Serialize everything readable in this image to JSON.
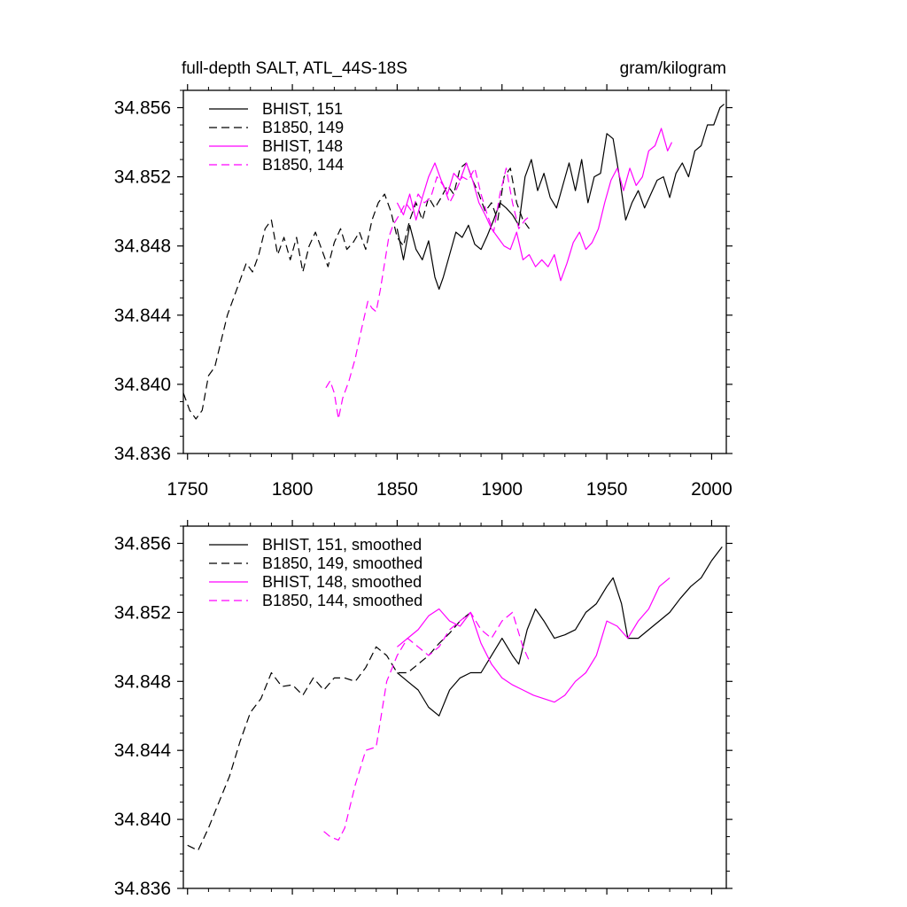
{
  "chart_data": [
    {
      "type": "line",
      "title_left": "full-depth SALT, ATL_44S-18S",
      "title_right": "gram/kilogram",
      "xlim": [
        1748,
        2007
      ],
      "ylim": [
        34.836,
        34.857
      ],
      "xticks": [
        1750,
        1800,
        1850,
        1900,
        1950,
        2000
      ],
      "xtick_labels": [
        "1750",
        "1800",
        "1850",
        "1900",
        "1950",
        "2000"
      ],
      "yticks": [
        34.836,
        34.84,
        34.844,
        34.848,
        34.852,
        34.856
      ],
      "ytick_labels": [
        "34.836",
        "34.840",
        "34.844",
        "34.848",
        "34.852",
        "34.856"
      ],
      "legend_position": "top-left",
      "series": [
        {
          "name": "BHIST, 151",
          "color": "#000000",
          "dash": "solid",
          "x": [
            1850,
            1853,
            1856,
            1859,
            1862,
            1865,
            1868,
            1870,
            1872,
            1875,
            1878,
            1881,
            1884,
            1887,
            1890,
            1893,
            1896,
            1899,
            1902,
            1905,
            1908,
            1911,
            1914,
            1917,
            1920,
            1923,
            1926,
            1929,
            1932,
            1935,
            1938,
            1941,
            1944,
            1947,
            1950,
            1953,
            1956,
            1959,
            1962,
            1965,
            1968,
            1971,
            1974,
            1977,
            1980,
            1983,
            1986,
            1989,
            1992,
            1995,
            1998,
            2001,
            2004,
            2006
          ],
          "y": [
            34.849,
            34.8472,
            34.8492,
            34.8478,
            34.8472,
            34.8483,
            34.8462,
            34.8455,
            34.8462,
            34.8475,
            34.8488,
            34.8485,
            34.8492,
            34.8481,
            34.8478,
            34.8486,
            34.8495,
            34.8505,
            34.8502,
            34.8498,
            34.8492,
            34.852,
            34.853,
            34.8512,
            34.8522,
            34.8508,
            34.8502,
            34.8515,
            34.8528,
            34.8512,
            34.853,
            34.8505,
            34.852,
            34.8522,
            34.8545,
            34.8542,
            34.852,
            34.8495,
            34.8505,
            34.8512,
            34.8502,
            34.851,
            34.8518,
            34.852,
            34.8508,
            34.8522,
            34.8528,
            34.852,
            34.8535,
            34.8538,
            34.855,
            34.855,
            34.856,
            34.8562
          ]
        },
        {
          "name": "B1850, 149",
          "color": "#000000",
          "dash": "dashed",
          "x": [
            1748,
            1751,
            1754,
            1757,
            1760,
            1763,
            1766,
            1769,
            1772,
            1775,
            1778,
            1781,
            1784,
            1787,
            1790,
            1793,
            1796,
            1799,
            1802,
            1805,
            1808,
            1811,
            1814,
            1817,
            1820,
            1823,
            1826,
            1829,
            1832,
            1835,
            1838,
            1841,
            1844,
            1847,
            1850,
            1853,
            1856,
            1859,
            1862,
            1865,
            1868,
            1871,
            1874,
            1877,
            1880,
            1883,
            1886,
            1889,
            1892,
            1895,
            1898,
            1901,
            1904,
            1907,
            1910,
            1913
          ],
          "y": [
            34.8395,
            34.8385,
            34.838,
            34.8385,
            34.8405,
            34.841,
            34.8425,
            34.844,
            34.845,
            34.846,
            34.847,
            34.8465,
            34.8475,
            34.849,
            34.8495,
            34.8475,
            34.8485,
            34.8472,
            34.8485,
            34.8465,
            34.848,
            34.8488,
            34.8478,
            34.8468,
            34.8482,
            34.849,
            34.8478,
            34.8482,
            34.8488,
            34.8478,
            34.8495,
            34.8505,
            34.851,
            34.85,
            34.8485,
            34.848,
            34.8495,
            34.8505,
            34.8495,
            34.8508,
            34.8502,
            34.8508,
            34.8515,
            34.851,
            34.8525,
            34.8528,
            34.8518,
            34.851,
            34.85,
            34.8505,
            34.8495,
            34.852,
            34.8525,
            34.8505,
            34.8495,
            34.849
          ]
        },
        {
          "name": "BHIST, 148",
          "color": "#ff00ff",
          "dash": "solid",
          "x": [
            1850,
            1853,
            1856,
            1859,
            1862,
            1865,
            1868,
            1871,
            1874,
            1877,
            1880,
            1883,
            1886,
            1889,
            1892,
            1895,
            1898,
            1901,
            1904,
            1907,
            1910,
            1913,
            1916,
            1919,
            1922,
            1925,
            1928,
            1931,
            1934,
            1937,
            1940,
            1943,
            1946,
            1949,
            1952,
            1955,
            1958,
            1961,
            1964,
            1967,
            1970,
            1973,
            1976,
            1979,
            1981
          ],
          "y": [
            34.8505,
            34.8498,
            34.851,
            34.8495,
            34.8508,
            34.852,
            34.8528,
            34.8518,
            34.851,
            34.8522,
            34.8518,
            34.8528,
            34.8518,
            34.8505,
            34.8498,
            34.849,
            34.8485,
            34.848,
            34.8478,
            34.8488,
            34.8472,
            34.8475,
            34.8468,
            34.8472,
            34.8468,
            34.8475,
            34.846,
            34.847,
            34.8482,
            34.8488,
            34.8478,
            34.8482,
            34.849,
            34.8505,
            34.8518,
            34.8525,
            34.8512,
            34.8525,
            34.8515,
            34.852,
            34.8535,
            34.8538,
            34.8548,
            34.8535,
            34.854
          ]
        },
        {
          "name": "B1850, 144",
          "color": "#ff00ff",
          "dash": "dashed",
          "x": [
            1816,
            1818,
            1820,
            1822,
            1824,
            1827,
            1830,
            1833,
            1836,
            1838,
            1840,
            1842,
            1844,
            1846,
            1848,
            1851,
            1854,
            1857,
            1860,
            1863,
            1866,
            1869,
            1872,
            1875,
            1878,
            1881,
            1884,
            1887,
            1890,
            1893,
            1896,
            1899,
            1902,
            1905,
            1908,
            1911,
            1914
          ],
          "y": [
            34.8398,
            34.8402,
            34.8395,
            34.838,
            34.8392,
            34.8402,
            34.8415,
            34.8432,
            34.8448,
            34.8444,
            34.8442,
            34.8455,
            34.847,
            34.8485,
            34.8492,
            34.8498,
            34.8505,
            34.85,
            34.851,
            34.8505,
            34.8508,
            34.852,
            34.8515,
            34.8505,
            34.8512,
            34.852,
            34.8518,
            34.8525,
            34.851,
            34.8498,
            34.8488,
            34.851,
            34.8525,
            34.8505,
            34.849,
            34.8495,
            34.8498
          ]
        }
      ]
    },
    {
      "type": "line",
      "xlim": [
        1748,
        2007
      ],
      "ylim": [
        34.836,
        34.857
      ],
      "xticks": [
        1750,
        1800,
        1850,
        1900,
        1950,
        2000
      ],
      "yticks": [
        34.836,
        34.84,
        34.844,
        34.848,
        34.852,
        34.856
      ],
      "ytick_labels": [
        "34.836",
        "34.840",
        "34.844",
        "34.848",
        "34.852",
        "34.856"
      ],
      "legend_position": "top-left",
      "series": [
        {
          "name": "BHIST, 151, smoothed",
          "color": "#000000",
          "dash": "solid",
          "x": [
            1850,
            1855,
            1860,
            1865,
            1870,
            1875,
            1880,
            1885,
            1890,
            1895,
            1900,
            1905,
            1908,
            1912,
            1916,
            1920,
            1925,
            1930,
            1935,
            1940,
            1945,
            1950,
            1953,
            1957,
            1960,
            1965,
            1970,
            1975,
            1980,
            1985,
            1990,
            1995,
            2000,
            2005
          ],
          "y": [
            34.8485,
            34.848,
            34.8475,
            34.8465,
            34.846,
            34.8475,
            34.8482,
            34.8485,
            34.8485,
            34.8495,
            34.8505,
            34.8495,
            34.849,
            34.851,
            34.8522,
            34.8515,
            34.8505,
            34.8507,
            34.851,
            34.852,
            34.8525,
            34.8535,
            34.854,
            34.8525,
            34.8505,
            34.8505,
            34.851,
            34.8515,
            34.852,
            34.8528,
            34.8535,
            34.854,
            34.855,
            34.8558
          ]
        },
        {
          "name": "B1850, 149, smoothed",
          "color": "#000000",
          "dash": "dashed",
          "x": [
            1750,
            1755,
            1760,
            1765,
            1770,
            1775,
            1780,
            1785,
            1790,
            1795,
            1800,
            1805,
            1810,
            1815,
            1820,
            1825,
            1830,
            1835,
            1840,
            1845,
            1850,
            1855,
            1860,
            1865,
            1870,
            1875,
            1880,
            1885
          ],
          "y": [
            34.8385,
            34.8382,
            34.8395,
            34.841,
            34.8425,
            34.8445,
            34.8462,
            34.847,
            34.8485,
            34.8477,
            34.8478,
            34.8472,
            34.8482,
            34.8475,
            34.8482,
            34.8482,
            34.848,
            34.8488,
            34.85,
            34.8495,
            34.8485,
            34.8485,
            34.849,
            34.8495,
            34.8502,
            34.8508,
            34.8515,
            34.852
          ]
        },
        {
          "name": "BHIST, 148, smoothed",
          "color": "#ff00ff",
          "dash": "solid",
          "x": [
            1850,
            1855,
            1860,
            1865,
            1870,
            1875,
            1880,
            1885,
            1890,
            1895,
            1900,
            1905,
            1910,
            1915,
            1920,
            1925,
            1930,
            1935,
            1940,
            1945,
            1950,
            1955,
            1960,
            1965,
            1970,
            1975,
            1980
          ],
          "y": [
            34.85,
            34.8505,
            34.851,
            34.8518,
            34.8522,
            34.8515,
            34.8512,
            34.852,
            34.8502,
            34.849,
            34.8482,
            34.8478,
            34.8475,
            34.8472,
            34.847,
            34.8468,
            34.8472,
            34.848,
            34.8485,
            34.8495,
            34.8515,
            34.8512,
            34.8505,
            34.8515,
            34.8522,
            34.8535,
            34.854
          ]
        },
        {
          "name": "B1850, 144, smoothed",
          "color": "#ff00ff",
          "dash": "dashed",
          "x": [
            1815,
            1818,
            1822,
            1825,
            1830,
            1835,
            1840,
            1845,
            1850,
            1855,
            1860,
            1865,
            1870,
            1875,
            1880,
            1885,
            1890,
            1895,
            1900,
            1905,
            1910,
            1913
          ],
          "y": [
            34.8393,
            34.839,
            34.8388,
            34.8395,
            34.842,
            34.844,
            34.8442,
            34.848,
            34.8495,
            34.8505,
            34.85,
            34.8495,
            34.85,
            34.851,
            34.8515,
            34.852,
            34.851,
            34.8505,
            34.8515,
            34.852,
            34.85,
            34.8492
          ]
        }
      ]
    }
  ]
}
